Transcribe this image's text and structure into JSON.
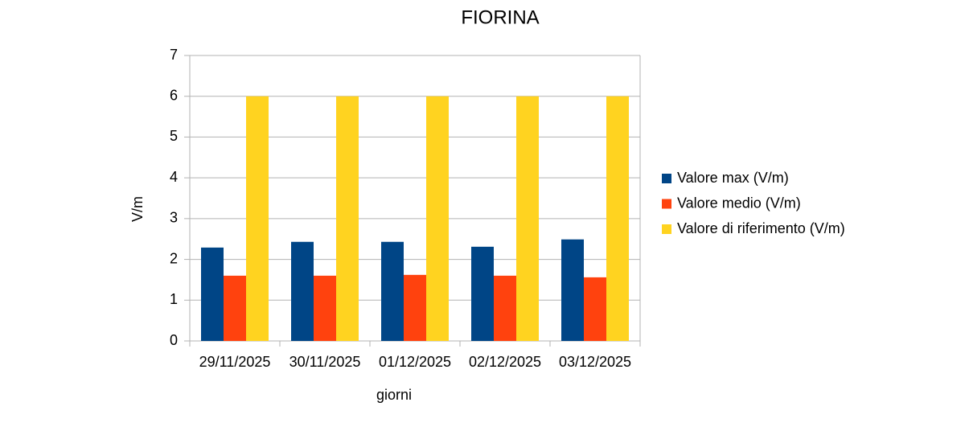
{
  "chart_data": {
    "type": "bar",
    "title": "FIORINA",
    "x_label": "giorni",
    "y_label": "V/m",
    "categories": [
      "29/11/2025",
      "30/11/2025",
      "01/12/2025",
      "02/12/2025",
      "03/12/2025"
    ],
    "series": [
      {
        "name": "Valore max (V/m)",
        "color": "#004586",
        "values": [
          2.29,
          2.43,
          2.43,
          2.31,
          2.49
        ]
      },
      {
        "name": "Valore medio (V/m)",
        "color": "#ff420e",
        "values": [
          1.6,
          1.6,
          1.62,
          1.6,
          1.56
        ]
      },
      {
        "name": "Valore di riferimento (V/m)",
        "color": "#ffd320",
        "values": [
          6,
          6,
          6,
          6,
          6
        ]
      }
    ],
    "ylim": [
      0,
      7
    ],
    "yticks": [
      0,
      1,
      2,
      3,
      4,
      5,
      6,
      7
    ],
    "grid": true,
    "legend": "right"
  }
}
